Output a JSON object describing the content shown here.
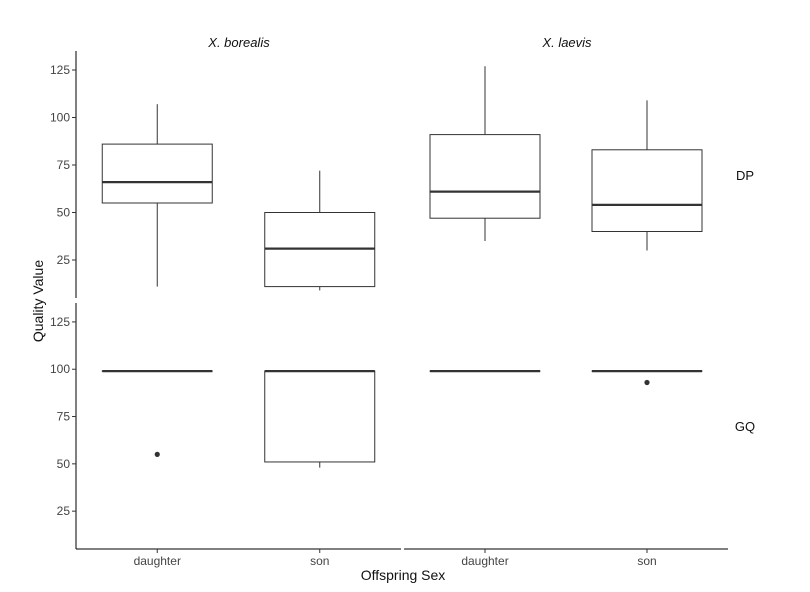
{
  "chart_data": {
    "type": "boxplot",
    "xlabel": "Offspring Sex",
    "ylabel": "Quality Value",
    "categories": [
      "daughter",
      "son"
    ],
    "columns": [
      "X. borealis",
      "X. laevis"
    ],
    "rows": [
      "DP",
      "GQ"
    ],
    "ylim": [
      5,
      135
    ],
    "yticks": [
      25,
      50,
      75,
      100,
      125
    ],
    "panels": [
      {
        "column": "X. borealis",
        "row": "DP",
        "boxes": [
          {
            "category": "daughter",
            "q1": 55,
            "median": 66,
            "q3": 86,
            "whisker_low": 11,
            "whisker_high": 107,
            "outliers": []
          },
          {
            "category": "son",
            "q1": 11,
            "median": 31,
            "q3": 50,
            "whisker_low": 9,
            "whisker_high": 72,
            "outliers": []
          }
        ]
      },
      {
        "column": "X. laevis",
        "row": "DP",
        "boxes": [
          {
            "category": "daughter",
            "q1": 47,
            "median": 61,
            "q3": 91,
            "whisker_low": 35,
            "whisker_high": 127,
            "outliers": []
          },
          {
            "category": "son",
            "q1": 40,
            "median": 54,
            "q3": 83,
            "whisker_low": 30,
            "whisker_high": 109,
            "outliers": []
          }
        ]
      },
      {
        "column": "X. borealis",
        "row": "GQ",
        "boxes": [
          {
            "category": "daughter",
            "q1": 99,
            "median": 99,
            "q3": 99,
            "whisker_low": 99,
            "whisker_high": 99,
            "outliers": [
              55
            ]
          },
          {
            "category": "son",
            "q1": 51,
            "median": 99,
            "q3": 99,
            "whisker_low": 48,
            "whisker_high": 99,
            "outliers": []
          }
        ]
      },
      {
        "column": "X. laevis",
        "row": "GQ",
        "boxes": [
          {
            "category": "daughter",
            "q1": 99,
            "median": 99,
            "q3": 99,
            "whisker_low": 99,
            "whisker_high": 99,
            "outliers": []
          },
          {
            "category": "son",
            "q1": 99,
            "median": 99,
            "q3": 99,
            "whisker_low": 99,
            "whisker_high": 99,
            "outliers": [
              93
            ]
          }
        ]
      }
    ]
  }
}
